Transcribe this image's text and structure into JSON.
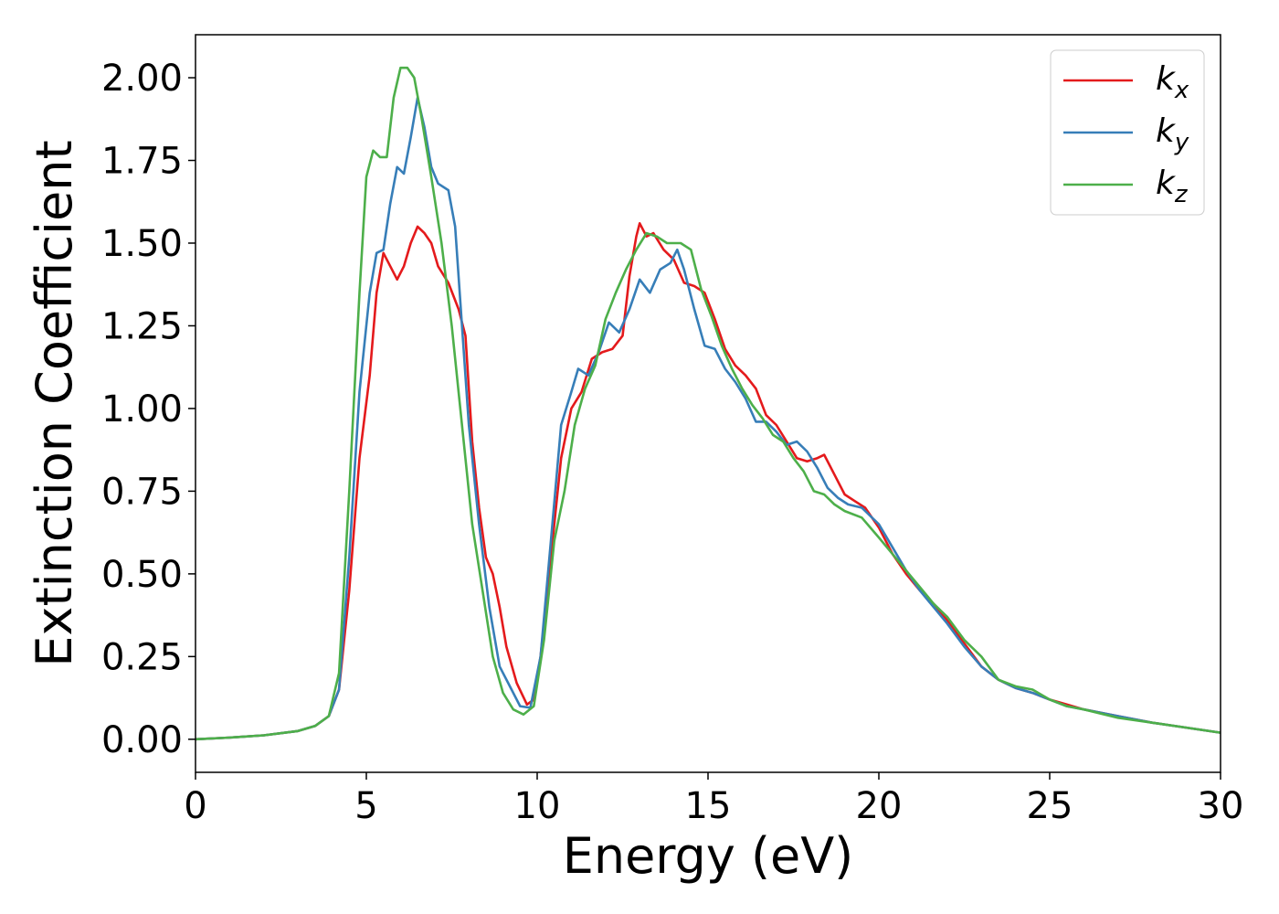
{
  "chart_data": {
    "type": "line",
    "xlabel": "Energy (eV)",
    "ylabel": "Extinction Coefficient",
    "xlim": [
      0,
      30
    ],
    "ylim": [
      -0.1,
      2.13
    ],
    "x_ticks": [
      "0",
      "5",
      "10",
      "15",
      "20",
      "25",
      "30"
    ],
    "y_ticks": [
      "0.00",
      "0.25",
      "0.50",
      "0.75",
      "1.00",
      "1.25",
      "1.50",
      "1.75",
      "2.00"
    ],
    "grid": false,
    "legend_position": "top-right",
    "series": [
      {
        "name": "k_x",
        "label_main": "k",
        "label_sub": "x",
        "color": "#e41a1c",
        "points": [
          [
            0,
            0.0
          ],
          [
            1,
            0.005
          ],
          [
            2,
            0.012
          ],
          [
            3,
            0.025
          ],
          [
            3.5,
            0.04
          ],
          [
            3.9,
            0.07
          ],
          [
            4.2,
            0.15
          ],
          [
            4.5,
            0.45
          ],
          [
            4.8,
            0.85
          ],
          [
            5.1,
            1.1
          ],
          [
            5.3,
            1.35
          ],
          [
            5.5,
            1.47
          ],
          [
            5.7,
            1.43
          ],
          [
            5.9,
            1.39
          ],
          [
            6.1,
            1.43
          ],
          [
            6.3,
            1.5
          ],
          [
            6.5,
            1.55
          ],
          [
            6.7,
            1.53
          ],
          [
            6.9,
            1.5
          ],
          [
            7.1,
            1.43
          ],
          [
            7.4,
            1.38
          ],
          [
            7.7,
            1.3
          ],
          [
            7.9,
            1.22
          ],
          [
            8.1,
            0.9
          ],
          [
            8.3,
            0.7
          ],
          [
            8.5,
            0.55
          ],
          [
            8.7,
            0.5
          ],
          [
            8.9,
            0.4
          ],
          [
            9.1,
            0.28
          ],
          [
            9.4,
            0.17
          ],
          [
            9.7,
            0.105
          ],
          [
            9.9,
            0.12
          ],
          [
            10.1,
            0.25
          ],
          [
            10.4,
            0.55
          ],
          [
            10.7,
            0.85
          ],
          [
            11.0,
            1.0
          ],
          [
            11.3,
            1.05
          ],
          [
            11.6,
            1.15
          ],
          [
            11.9,
            1.17
          ],
          [
            12.2,
            1.18
          ],
          [
            12.5,
            1.22
          ],
          [
            12.7,
            1.4
          ],
          [
            12.9,
            1.52
          ],
          [
            13.0,
            1.56
          ],
          [
            13.2,
            1.52
          ],
          [
            13.4,
            1.53
          ],
          [
            13.7,
            1.48
          ],
          [
            14.0,
            1.45
          ],
          [
            14.3,
            1.38
          ],
          [
            14.6,
            1.37
          ],
          [
            14.9,
            1.35
          ],
          [
            15.2,
            1.27
          ],
          [
            15.5,
            1.18
          ],
          [
            15.8,
            1.13
          ],
          [
            16.1,
            1.1
          ],
          [
            16.4,
            1.06
          ],
          [
            16.7,
            0.98
          ],
          [
            17.0,
            0.95
          ],
          [
            17.3,
            0.9
          ],
          [
            17.6,
            0.85
          ],
          [
            17.9,
            0.84
          ],
          [
            18.2,
            0.85
          ],
          [
            18.4,
            0.86
          ],
          [
            18.7,
            0.8
          ],
          [
            19.0,
            0.74
          ],
          [
            19.3,
            0.72
          ],
          [
            19.6,
            0.7
          ],
          [
            20.0,
            0.64
          ],
          [
            20.4,
            0.56
          ],
          [
            20.8,
            0.5
          ],
          [
            21.2,
            0.45
          ],
          [
            21.6,
            0.41
          ],
          [
            22.0,
            0.36
          ],
          [
            22.5,
            0.29
          ],
          [
            23.0,
            0.22
          ],
          [
            23.5,
            0.18
          ],
          [
            24.0,
            0.155
          ],
          [
            24.5,
            0.14
          ],
          [
            25.0,
            0.12
          ],
          [
            25.5,
            0.105
          ],
          [
            26.0,
            0.09
          ],
          [
            27.0,
            0.07
          ],
          [
            28.0,
            0.05
          ],
          [
            29.0,
            0.035
          ],
          [
            30.0,
            0.02
          ]
        ]
      },
      {
        "name": "k_y",
        "label_main": "k",
        "label_sub": "y",
        "color": "#377eb8",
        "points": [
          [
            0,
            0.0
          ],
          [
            1,
            0.005
          ],
          [
            2,
            0.012
          ],
          [
            3,
            0.025
          ],
          [
            3.5,
            0.04
          ],
          [
            3.9,
            0.07
          ],
          [
            4.2,
            0.15
          ],
          [
            4.5,
            0.55
          ],
          [
            4.8,
            1.05
          ],
          [
            5.1,
            1.35
          ],
          [
            5.3,
            1.47
          ],
          [
            5.5,
            1.48
          ],
          [
            5.7,
            1.62
          ],
          [
            5.9,
            1.73
          ],
          [
            6.1,
            1.71
          ],
          [
            6.3,
            1.82
          ],
          [
            6.5,
            1.94
          ],
          [
            6.7,
            1.85
          ],
          [
            6.9,
            1.73
          ],
          [
            7.1,
            1.68
          ],
          [
            7.4,
            1.66
          ],
          [
            7.6,
            1.55
          ],
          [
            7.8,
            1.25
          ],
          [
            8.0,
            0.95
          ],
          [
            8.3,
            0.65
          ],
          [
            8.6,
            0.4
          ],
          [
            8.9,
            0.22
          ],
          [
            9.2,
            0.16
          ],
          [
            9.5,
            0.1
          ],
          [
            9.8,
            0.095
          ],
          [
            10.1,
            0.25
          ],
          [
            10.4,
            0.6
          ],
          [
            10.7,
            0.95
          ],
          [
            11.0,
            1.05
          ],
          [
            11.2,
            1.12
          ],
          [
            11.5,
            1.1
          ],
          [
            11.8,
            1.17
          ],
          [
            12.1,
            1.26
          ],
          [
            12.4,
            1.23
          ],
          [
            12.7,
            1.3
          ],
          [
            13.0,
            1.39
          ],
          [
            13.3,
            1.35
          ],
          [
            13.6,
            1.42
          ],
          [
            13.9,
            1.44
          ],
          [
            14.1,
            1.48
          ],
          [
            14.3,
            1.42
          ],
          [
            14.6,
            1.3
          ],
          [
            14.9,
            1.19
          ],
          [
            15.2,
            1.18
          ],
          [
            15.5,
            1.12
          ],
          [
            15.8,
            1.08
          ],
          [
            16.1,
            1.03
          ],
          [
            16.4,
            0.96
          ],
          [
            16.7,
            0.96
          ],
          [
            17.0,
            0.93
          ],
          [
            17.3,
            0.89
          ],
          [
            17.6,
            0.9
          ],
          [
            17.9,
            0.87
          ],
          [
            18.2,
            0.82
          ],
          [
            18.5,
            0.76
          ],
          [
            18.8,
            0.73
          ],
          [
            19.1,
            0.71
          ],
          [
            19.5,
            0.7
          ],
          [
            20.0,
            0.65
          ],
          [
            20.4,
            0.58
          ],
          [
            20.8,
            0.51
          ],
          [
            21.2,
            0.45
          ],
          [
            21.6,
            0.4
          ],
          [
            22.0,
            0.35
          ],
          [
            22.5,
            0.28
          ],
          [
            23.0,
            0.22
          ],
          [
            23.5,
            0.18
          ],
          [
            24.0,
            0.155
          ],
          [
            24.5,
            0.14
          ],
          [
            25.0,
            0.12
          ],
          [
            25.5,
            0.1
          ],
          [
            26.0,
            0.09
          ],
          [
            27.0,
            0.07
          ],
          [
            28.0,
            0.05
          ],
          [
            29.0,
            0.035
          ],
          [
            30.0,
            0.02
          ]
        ]
      },
      {
        "name": "k_z",
        "label_main": "k",
        "label_sub": "z",
        "color": "#4daf4a",
        "points": [
          [
            0,
            0.0
          ],
          [
            1,
            0.005
          ],
          [
            2,
            0.012
          ],
          [
            3,
            0.025
          ],
          [
            3.5,
            0.04
          ],
          [
            3.9,
            0.07
          ],
          [
            4.2,
            0.2
          ],
          [
            4.5,
            0.75
          ],
          [
            4.8,
            1.35
          ],
          [
            5.0,
            1.7
          ],
          [
            5.2,
            1.78
          ],
          [
            5.4,
            1.76
          ],
          [
            5.6,
            1.76
          ],
          [
            5.8,
            1.94
          ],
          [
            6.0,
            2.03
          ],
          [
            6.2,
            2.03
          ],
          [
            6.4,
            2.0
          ],
          [
            6.6,
            1.89
          ],
          [
            6.9,
            1.7
          ],
          [
            7.2,
            1.5
          ],
          [
            7.5,
            1.25
          ],
          [
            7.8,
            0.95
          ],
          [
            8.1,
            0.65
          ],
          [
            8.4,
            0.45
          ],
          [
            8.7,
            0.25
          ],
          [
            9.0,
            0.14
          ],
          [
            9.3,
            0.09
          ],
          [
            9.6,
            0.075
          ],
          [
            9.9,
            0.1
          ],
          [
            10.2,
            0.3
          ],
          [
            10.5,
            0.6
          ],
          [
            10.8,
            0.75
          ],
          [
            11.1,
            0.95
          ],
          [
            11.4,
            1.06
          ],
          [
            11.7,
            1.13
          ],
          [
            12.0,
            1.27
          ],
          [
            12.3,
            1.35
          ],
          [
            12.6,
            1.42
          ],
          [
            12.9,
            1.48
          ],
          [
            13.2,
            1.53
          ],
          [
            13.5,
            1.52
          ],
          [
            13.8,
            1.5
          ],
          [
            14.2,
            1.5
          ],
          [
            14.5,
            1.48
          ],
          [
            14.8,
            1.36
          ],
          [
            15.1,
            1.28
          ],
          [
            15.4,
            1.19
          ],
          [
            15.7,
            1.12
          ],
          [
            16.0,
            1.06
          ],
          [
            16.3,
            1.01
          ],
          [
            16.6,
            0.97
          ],
          [
            16.9,
            0.92
          ],
          [
            17.2,
            0.9
          ],
          [
            17.5,
            0.85
          ],
          [
            17.8,
            0.81
          ],
          [
            18.1,
            0.75
          ],
          [
            18.4,
            0.74
          ],
          [
            18.7,
            0.71
          ],
          [
            19.0,
            0.69
          ],
          [
            19.5,
            0.67
          ],
          [
            20.0,
            0.61
          ],
          [
            20.4,
            0.56
          ],
          [
            20.8,
            0.51
          ],
          [
            21.2,
            0.46
          ],
          [
            21.6,
            0.41
          ],
          [
            22.0,
            0.37
          ],
          [
            22.5,
            0.3
          ],
          [
            23.0,
            0.25
          ],
          [
            23.5,
            0.18
          ],
          [
            24.0,
            0.16
          ],
          [
            24.5,
            0.15
          ],
          [
            25.0,
            0.12
          ],
          [
            25.5,
            0.1
          ],
          [
            26.0,
            0.09
          ],
          [
            27.0,
            0.065
          ],
          [
            28.0,
            0.05
          ],
          [
            29.0,
            0.035
          ],
          [
            30.0,
            0.02
          ]
        ]
      }
    ]
  }
}
